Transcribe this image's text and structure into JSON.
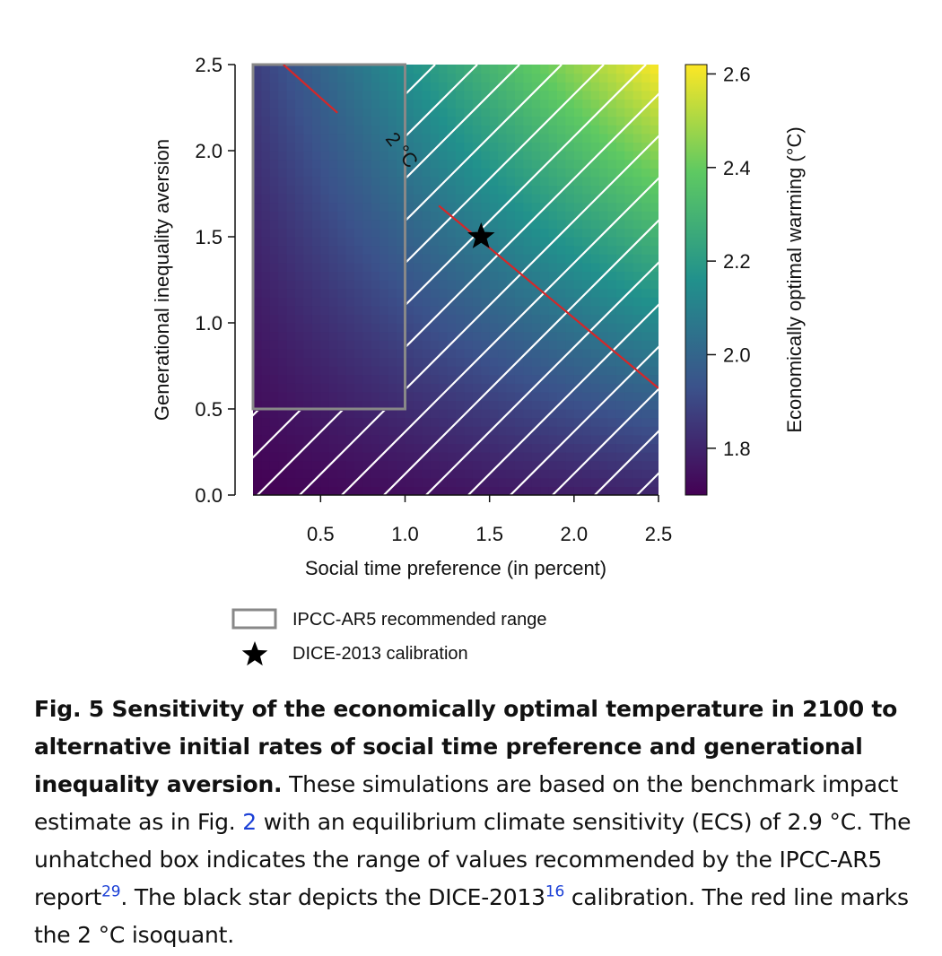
{
  "chart_data": {
    "type": "heatmap",
    "xlabel": "Social time preference (in percent)",
    "ylabel": "Generational inequality aversion",
    "colorbar_label": "Economically optimal warming (°C)",
    "xlim": [
      0.1,
      2.5
    ],
    "ylim": [
      0.0,
      2.5
    ],
    "x_ticks": [
      "0.5",
      "1.0",
      "1.5",
      "2.0",
      "2.5"
    ],
    "x_tick_values": [
      0.5,
      1.0,
      1.5,
      2.0,
      2.5
    ],
    "y_ticks": [
      "0.0",
      "0.5",
      "1.0",
      "1.5",
      "2.0",
      "2.5"
    ],
    "y_tick_values": [
      0.0,
      0.5,
      1.0,
      1.5,
      2.0,
      2.5
    ],
    "colorbar_ticks": [
      "1.8",
      "2.0",
      "2.2",
      "2.4",
      "2.6"
    ],
    "colorbar_tick_values": [
      1.8,
      2.0,
      2.2,
      2.4,
      2.6
    ],
    "colorbar_range": [
      1.7,
      2.62
    ],
    "colormap": [
      "#440154",
      "#3b528b",
      "#21918c",
      "#5ec962",
      "#fde725"
    ],
    "grid": [
      {
        "x": 0.1,
        "y": 0.0,
        "value": 1.7
      },
      {
        "x": 2.5,
        "y": 0.0,
        "value": 1.8
      },
      {
        "x": 0.1,
        "y": 2.5,
        "value": 1.87
      },
      {
        "x": 2.5,
        "y": 2.5,
        "value": 2.62
      }
    ],
    "ipcc_box": {
      "x": [
        0.1,
        1.0
      ],
      "y": [
        0.5,
        2.5
      ],
      "color": "#888888"
    },
    "isoquant_2C": {
      "color": "#d62728",
      "segments": [
        [
          [
            0.28,
            2.5
          ],
          [
            0.6,
            2.22
          ]
        ],
        [
          [
            1.2,
            1.68
          ],
          [
            2.5,
            0.62
          ]
        ]
      ],
      "label": "2 °C",
      "label_at": [
        0.95,
        1.98
      ]
    },
    "dice_point": {
      "x": 1.45,
      "y": 1.5
    },
    "legend": [
      {
        "label": "IPCC-AR5 recommended range",
        "symbol": "box"
      },
      {
        "label": "DICE-2013 calibration",
        "symbol": "star"
      }
    ]
  },
  "caption": {
    "bold": "Fig. 5 Sensitivity of the economically optimal temperature in 2100 to alternative initial rates of social time preference and generational inequality aversion.",
    "t1": " These simulations are based on the benchmark impact estimate as in Fig. ",
    "ref_fig": "2",
    "t2": " with an equilibrium climate sensitivity (ECS) of 2.9 °C. The unhatched box indicates the range of values recommended by the IPCC-AR5 report",
    "ref1": "29",
    "t3": ". The black star depicts the DICE-2013",
    "ref2": "16",
    "t4": " calibration. The red line marks the 2 °C isoquant."
  }
}
